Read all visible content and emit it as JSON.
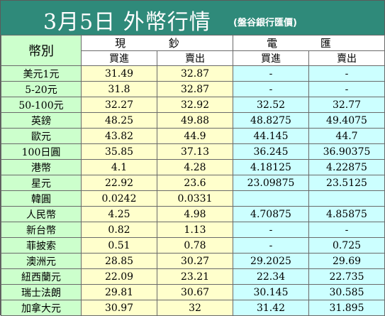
{
  "title": "3月5日 外幣行情",
  "subtitle": "(盤谷銀行匯價)",
  "header": {
    "currency": "幣別",
    "cash": "現 鈔",
    "wire": "電 匯",
    "buy": "買進",
    "sell": "賣出"
  },
  "rows": [
    {
      "currency": "美元1元",
      "cash_buy": "31.49",
      "cash_sell": "32.87",
      "wire_buy": "-",
      "wire_sell": "-"
    },
    {
      "currency": "5-20元",
      "cash_buy": "31.8",
      "cash_sell": "32.87",
      "wire_buy": "-",
      "wire_sell": "-"
    },
    {
      "currency": "50-100元",
      "cash_buy": "32.27",
      "cash_sell": "32.92",
      "wire_buy": "32.52",
      "wire_sell": "32.77"
    },
    {
      "currency": "英鎊",
      "cash_buy": "48.25",
      "cash_sell": "49.88",
      "wire_buy": "48.8275",
      "wire_sell": "49.4075"
    },
    {
      "currency": "歐元",
      "cash_buy": "43.82",
      "cash_sell": "44.9",
      "wire_buy": "44.145",
      "wire_sell": "44.7"
    },
    {
      "currency": "100日圓",
      "cash_buy": "35.85",
      "cash_sell": "37.13",
      "wire_buy": "36.245",
      "wire_sell": "36.90375"
    },
    {
      "currency": "港幣",
      "cash_buy": "4.1",
      "cash_sell": "4.28",
      "wire_buy": "4.18125",
      "wire_sell": "4.22875"
    },
    {
      "currency": "星元",
      "cash_buy": "22.92",
      "cash_sell": "23.6",
      "wire_buy": "23.09875",
      "wire_sell": "23.5125"
    },
    {
      "currency": "韓圓",
      "cash_buy": "0.0242",
      "cash_sell": "0.0331",
      "wire_buy": "",
      "wire_sell": ""
    },
    {
      "currency": "人民幣",
      "cash_buy": "4.25",
      "cash_sell": "4.98",
      "wire_buy": "4.70875",
      "wire_sell": "4.85875"
    },
    {
      "currency": "新台幣",
      "cash_buy": "0.82",
      "cash_sell": "1.13",
      "wire_buy": "-",
      "wire_sell": "-"
    },
    {
      "currency": "菲披索",
      "cash_buy": "0.51",
      "cash_sell": "0.78",
      "wire_buy": "-",
      "wire_sell": "0.725"
    },
    {
      "currency": "澳洲元",
      "cash_buy": "28.85",
      "cash_sell": "30.27",
      "wire_buy": "29.2025",
      "wire_sell": "29.69"
    },
    {
      "currency": "紐西蘭元",
      "cash_buy": "22.09",
      "cash_sell": "23.21",
      "wire_buy": "22.34",
      "wire_sell": "22.735"
    },
    {
      "currency": "瑞士法朗",
      "cash_buy": "29.81",
      "cash_sell": "30.67",
      "wire_buy": "30.145",
      "wire_sell": "30.585"
    },
    {
      "currency": "加拿大元",
      "cash_buy": "30.97",
      "cash_sell": "32",
      "wire_buy": "31.42",
      "wire_sell": "31.895"
    }
  ]
}
